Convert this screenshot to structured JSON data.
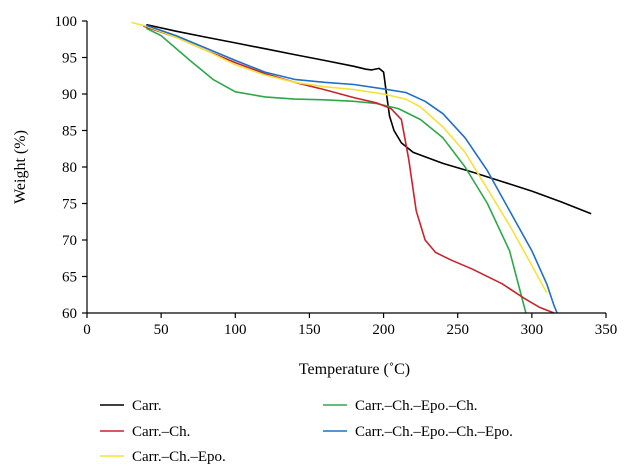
{
  "chart_data": {
    "type": "line",
    "xlabel": "Temperature (˚C)",
    "ylabel": "Weight (%)",
    "xlim": [
      0,
      350
    ],
    "ylim": [
      60,
      100
    ],
    "xticks": [
      "0",
      "50",
      "100",
      "150",
      "200",
      "250",
      "300",
      "350"
    ],
    "yticks": [
      "60",
      "65",
      "70",
      "75",
      "80",
      "85",
      "90",
      "95",
      "100"
    ],
    "grid": false,
    "legend_position": "bottom",
    "series": [
      {
        "name": "Carr.",
        "color": "#000000",
        "points": [
          [
            40,
            99.5
          ],
          [
            60,
            98.6
          ],
          [
            80,
            97.8
          ],
          [
            100,
            97.0
          ],
          [
            120,
            96.2
          ],
          [
            140,
            95.4
          ],
          [
            160,
            94.6
          ],
          [
            180,
            93.8
          ],
          [
            188,
            93.4
          ],
          [
            192,
            93.3
          ],
          [
            197,
            93.5
          ],
          [
            200,
            93.0
          ],
          [
            202,
            90.0
          ],
          [
            204,
            87.0
          ],
          [
            207,
            85.0
          ],
          [
            212,
            83.3
          ],
          [
            220,
            82.0
          ],
          [
            240,
            80.5
          ],
          [
            260,
            79.3
          ],
          [
            280,
            78.0
          ],
          [
            300,
            76.7
          ],
          [
            320,
            75.2
          ],
          [
            340,
            73.6
          ]
        ]
      },
      {
        "name": "Carr.–Ch.",
        "color": "#c8242b",
        "points": [
          [
            38,
            99.3
          ],
          [
            60,
            97.8
          ],
          [
            80,
            96.0
          ],
          [
            100,
            94.3
          ],
          [
            120,
            92.8
          ],
          [
            140,
            91.6
          ],
          [
            160,
            90.6
          ],
          [
            180,
            89.5
          ],
          [
            195,
            88.8
          ],
          [
            205,
            88.0
          ],
          [
            212,
            86.5
          ],
          [
            217,
            81.0
          ],
          [
            222,
            74.0
          ],
          [
            228,
            70.0
          ],
          [
            235,
            68.3
          ],
          [
            245,
            67.3
          ],
          [
            260,
            66.0
          ],
          [
            280,
            64.0
          ],
          [
            295,
            62.0
          ],
          [
            305,
            60.8
          ],
          [
            315,
            60.0
          ]
        ]
      },
      {
        "name": "Carr.–Ch.–Epo.",
        "color": "#f4e23a",
        "points": [
          [
            30,
            99.8
          ],
          [
            40,
            99.3
          ],
          [
            60,
            97.8
          ],
          [
            80,
            96.0
          ],
          [
            100,
            94.0
          ],
          [
            120,
            92.6
          ],
          [
            140,
            91.6
          ],
          [
            160,
            91.0
          ],
          [
            180,
            90.6
          ],
          [
            200,
            90.0
          ],
          [
            215,
            89.3
          ],
          [
            225,
            88.2
          ],
          [
            240,
            85.5
          ],
          [
            255,
            82.0
          ],
          [
            270,
            77.0
          ],
          [
            285,
            72.0
          ],
          [
            300,
            66.5
          ],
          [
            310,
            62.8
          ]
        ]
      },
      {
        "name": "Carr.–Ch.–Epo.–Ch.",
        "color": "#2ea84a",
        "points": [
          [
            40,
            99.0
          ],
          [
            50,
            98.0
          ],
          [
            70,
            94.5
          ],
          [
            85,
            92.0
          ],
          [
            100,
            90.3
          ],
          [
            120,
            89.6
          ],
          [
            140,
            89.3
          ],
          [
            160,
            89.2
          ],
          [
            180,
            89.0
          ],
          [
            195,
            88.7
          ],
          [
            210,
            88.0
          ],
          [
            225,
            86.5
          ],
          [
            240,
            84.0
          ],
          [
            255,
            80.0
          ],
          [
            270,
            75.0
          ],
          [
            285,
            68.5
          ],
          [
            296,
            60.0
          ]
        ]
      },
      {
        "name": "Carr.–Ch.–Epo.–Ch.–Epo.",
        "color": "#1f6fc5",
        "points": [
          [
            40,
            99.4
          ],
          [
            60,
            98.0
          ],
          [
            80,
            96.3
          ],
          [
            100,
            94.6
          ],
          [
            120,
            93.0
          ],
          [
            140,
            92.0
          ],
          [
            160,
            91.6
          ],
          [
            180,
            91.3
          ],
          [
            200,
            90.7
          ],
          [
            215,
            90.2
          ],
          [
            228,
            89.0
          ],
          [
            240,
            87.3
          ],
          [
            255,
            84.0
          ],
          [
            270,
            79.5
          ],
          [
            285,
            74.0
          ],
          [
            300,
            68.5
          ],
          [
            310,
            64.0
          ],
          [
            315,
            61.0
          ],
          [
            317,
            60.0
          ]
        ]
      }
    ]
  }
}
